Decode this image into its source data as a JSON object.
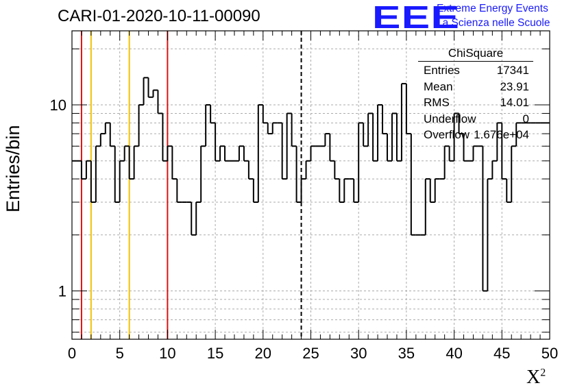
{
  "title": "CARI-01-2020-10-11-00090",
  "logo": {
    "mark": "EEE",
    "line1": "Extreme Energy Events",
    "line2": "La Scienza nelle Scuole",
    "color": "#1a1aff"
  },
  "stats_box": {
    "header": "ChiSquare",
    "rows": [
      {
        "key": "Entries",
        "value": "17341"
      },
      {
        "key": "Mean",
        "value": "23.91"
      },
      {
        "key": "RMS",
        "value": "14.01"
      },
      {
        "key": "Underflow",
        "value": "0"
      },
      {
        "key": "Overflow",
        "value": "1.676e+04"
      }
    ]
  },
  "chart_data": {
    "type": "histogram",
    "title": "CARI-01-2020-10-11-00090",
    "xlabel": "χ²",
    "ylabel": "Entries/bin",
    "xlim": [
      0,
      50
    ],
    "ylim": [
      0.55,
      25
    ],
    "yscale": "log",
    "grid": true,
    "x_ticks": [
      0,
      5,
      10,
      15,
      20,
      25,
      30,
      35,
      40,
      45,
      50
    ],
    "y_tick_labels": [
      1,
      10
    ],
    "bin_width": 0.5,
    "counts": [
      5,
      5,
      4,
      5,
      3,
      6,
      7,
      8,
      6,
      3,
      5,
      6,
      4,
      6,
      10,
      14,
      11,
      12,
      9,
      5,
      6,
      4,
      3,
      3,
      3,
      2,
      3,
      6,
      10,
      8,
      5,
      6,
      5,
      5,
      5,
      6,
      5,
      4,
      3,
      10,
      8,
      7,
      8,
      8,
      4,
      9,
      6,
      3,
      4,
      5,
      6,
      6,
      6,
      7,
      5,
      4,
      3,
      4,
      4,
      3,
      8,
      6,
      9,
      5,
      10,
      7,
      5,
      9,
      5,
      13,
      7,
      2,
      2,
      2,
      4,
      3,
      4,
      4,
      6,
      5,
      9,
      7,
      5,
      5,
      6,
      6,
      1,
      4,
      5,
      8,
      4,
      3,
      6,
      8,
      8,
      8,
      8,
      8,
      8,
      8
    ],
    "vertical_lines": [
      {
        "x": 1,
        "color": "#dd1111",
        "style": "solid"
      },
      {
        "x": 2,
        "color": "#f2c200",
        "style": "solid"
      },
      {
        "x": 6,
        "color": "#f2c200",
        "style": "solid"
      },
      {
        "x": 10,
        "color": "#dd1111",
        "style": "solid"
      },
      {
        "x": 24,
        "color": "#000000",
        "style": "dashed"
      }
    ],
    "line_color": "#000000"
  }
}
